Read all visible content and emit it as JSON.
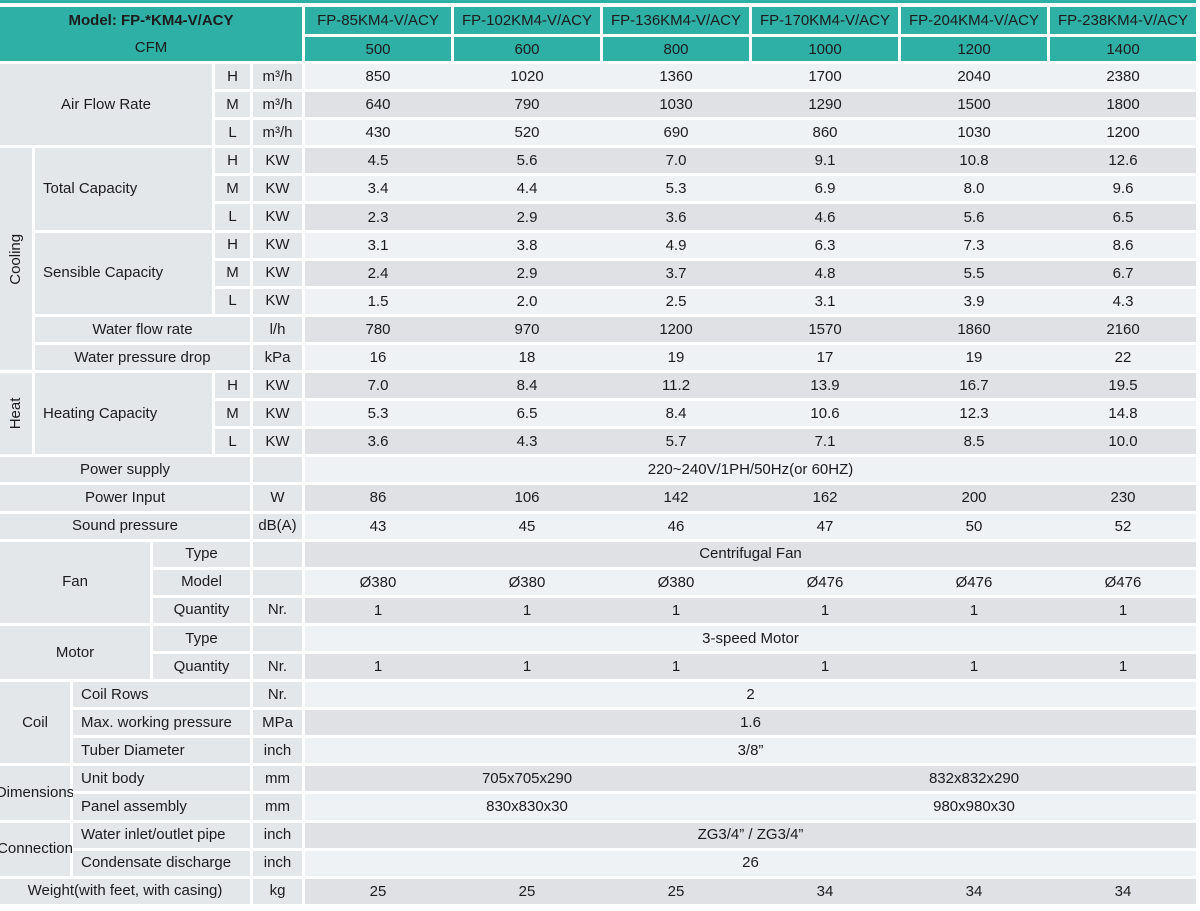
{
  "colors": {
    "header_teal": "#2fb0a6",
    "row_light": "#eef2f5",
    "row_gray": "#dfe1e4",
    "label_bg": "#e4e7ea"
  },
  "table": {
    "header": {
      "model_label": "Model: FP-*KM4-V/ACY",
      "cfm_label": "CFM",
      "models": [
        "FP-85KM4-V/ACY",
        "FP-102KM4-V/ACY",
        "FP-136KM4-V/ACY",
        "FP-170KM4-V/ACY",
        "FP-204KM4-V/ACY",
        "FP-238KM4-V/ACY"
      ],
      "cfm": [
        "500",
        "600",
        "800",
        "1000",
        "1200",
        "1400"
      ]
    },
    "air_flow": {
      "label": "Air Flow Rate",
      "rows": [
        {
          "speed": "H",
          "unit": "m³/h",
          "values": [
            "850",
            "1020",
            "1360",
            "1700",
            "2040",
            "2380"
          ]
        },
        {
          "speed": "M",
          "unit": "m³/h",
          "values": [
            "640",
            "790",
            "1030",
            "1290",
            "1500",
            "1800"
          ]
        },
        {
          "speed": "L",
          "unit": "m³/h",
          "values": [
            "430",
            "520",
            "690",
            "860",
            "1030",
            "1200"
          ]
        }
      ]
    },
    "cooling": {
      "group_label": "Cooling",
      "total_capacity": {
        "label": "Total Capacity",
        "rows": [
          {
            "speed": "H",
            "unit": "KW",
            "values": [
              "4.5",
              "5.6",
              "7.0",
              "9.1",
              "10.8",
              "12.6"
            ]
          },
          {
            "speed": "M",
            "unit": "KW",
            "values": [
              "3.4",
              "4.4",
              "5.3",
              "6.9",
              "8.0",
              "9.6"
            ]
          },
          {
            "speed": "L",
            "unit": "KW",
            "values": [
              "2.3",
              "2.9",
              "3.6",
              "4.6",
              "5.6",
              "6.5"
            ]
          }
        ]
      },
      "sensible_capacity": {
        "label": "Sensible Capacity",
        "rows": [
          {
            "speed": "H",
            "unit": "KW",
            "values": [
              "3.1",
              "3.8",
              "4.9",
              "6.3",
              "7.3",
              "8.6"
            ]
          },
          {
            "speed": "M",
            "unit": "KW",
            "values": [
              "2.4",
              "2.9",
              "3.7",
              "4.8",
              "5.5",
              "6.7"
            ]
          },
          {
            "speed": "L",
            "unit": "KW",
            "values": [
              "1.5",
              "2.0",
              "2.5",
              "3.1",
              "3.9",
              "4.3"
            ]
          }
        ]
      },
      "water_flow_rate": {
        "label": "Water flow rate",
        "unit": "l/h",
        "values": [
          "780",
          "970",
          "1200",
          "1570",
          "1860",
          "2160"
        ]
      },
      "water_pressure_drop": {
        "label": "Water pressure drop",
        "unit": "kPa",
        "values": [
          "16",
          "18",
          "19",
          "17",
          "19",
          "22"
        ]
      }
    },
    "heat": {
      "group_label": "Heat",
      "heating_capacity": {
        "label": "Heating Capacity",
        "rows": [
          {
            "speed": "H",
            "unit": "KW",
            "values": [
              "7.0",
              "8.4",
              "11.2",
              "13.9",
              "16.7",
              "19.5"
            ]
          },
          {
            "speed": "M",
            "unit": "KW",
            "values": [
              "5.3",
              "6.5",
              "8.4",
              "10.6",
              "12.3",
              "14.8"
            ]
          },
          {
            "speed": "L",
            "unit": "KW",
            "values": [
              "3.6",
              "4.3",
              "5.7",
              "7.1",
              "8.5",
              "10.0"
            ]
          }
        ]
      }
    },
    "power_supply": {
      "label": "Power supply",
      "value": "220~240V/1PH/50Hz(or 60HZ)"
    },
    "power_input": {
      "label": "Power Input",
      "unit": "W",
      "values": [
        "86",
        "106",
        "142",
        "162",
        "200",
        "230"
      ]
    },
    "sound_pressure": {
      "label": "Sound pressure",
      "unit": "dB(A)",
      "values": [
        "43",
        "45",
        "46",
        "47",
        "50",
        "52"
      ]
    },
    "fan": {
      "group_label": "Fan",
      "type": {
        "label": "Type",
        "value": "Centrifugal Fan"
      },
      "model": {
        "label": "Model",
        "values": [
          "Ø380",
          "Ø380",
          "Ø380",
          "Ø476",
          "Ø476",
          "Ø476"
        ]
      },
      "quantity": {
        "label": "Quantity",
        "unit": "Nr.",
        "values": [
          "1",
          "1",
          "1",
          "1",
          "1",
          "1"
        ]
      }
    },
    "motor": {
      "group_label": "Motor",
      "type": {
        "label": "Type",
        "value": "3-speed Motor"
      },
      "quantity": {
        "label": "Quantity",
        "unit": "Nr.",
        "values": [
          "1",
          "1",
          "1",
          "1",
          "1",
          "1"
        ]
      }
    },
    "coil": {
      "group_label": "Coil",
      "coil_rows": {
        "label": "Coil Rows",
        "unit": "Nr.",
        "value": "2"
      },
      "max_working_pressure": {
        "label": "Max. working pressure",
        "unit": "MPa",
        "value": "1.6"
      },
      "tuber_diameter": {
        "label": "Tuber Diameter",
        "unit": "inch",
        "value": "3/8”"
      }
    },
    "dimensions": {
      "group_label": "Dimensions",
      "unit_body": {
        "label": "Unit body",
        "unit": "mm",
        "left": "705x705x290",
        "right": "832x832x290"
      },
      "panel_assembly": {
        "label": "Panel assembly",
        "unit": "mm",
        "left": "830x830x30",
        "right": "980x980x30"
      }
    },
    "connection": {
      "group_label": "Connection",
      "water_pipe": {
        "label": "Water inlet/outlet pipe",
        "unit": "inch",
        "value": "ZG3/4” / ZG3/4”"
      },
      "condensate": {
        "label": "Condensate discharge",
        "unit": "inch",
        "value": "26"
      }
    },
    "weight": {
      "label": "Weight(with feet, with casing)",
      "unit": "kg",
      "values": [
        "25",
        "25",
        "25",
        "34",
        "34",
        "34"
      ]
    }
  }
}
